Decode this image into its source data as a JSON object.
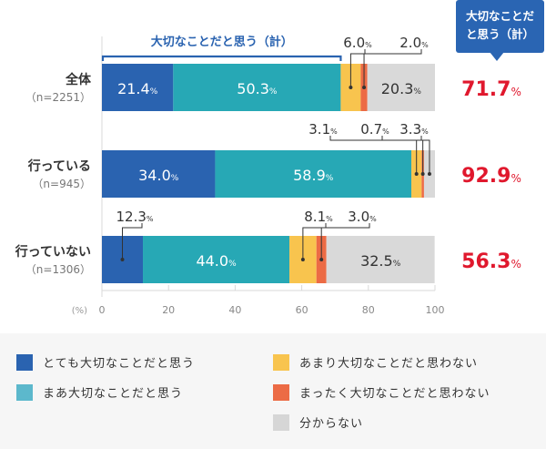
{
  "chart_data": {
    "type": "bar",
    "orientation": "horizontal-stacked-100",
    "unit_label": "(%)",
    "xlim": [
      0,
      100
    ],
    "x_ticks": [
      0,
      20,
      40,
      60,
      80,
      100
    ],
    "bracket_label": "大切なことだと思う（計）",
    "callout_label_line1": "大切なことだ",
    "callout_label_line2": "と思う（計）",
    "categories": [
      {
        "label": "全体",
        "n": "（n=2251）",
        "total": "71.7"
      },
      {
        "label": "行っている",
        "n": "（n=945）",
        "total": "92.9"
      },
      {
        "label": "行っていない",
        "n": "（n=1306）",
        "total": "56.3"
      }
    ],
    "series": [
      {
        "name": "とても大切なことだと思う",
        "color": "#2a63b0",
        "values": [
          21.4,
          34.0,
          12.3
        ]
      },
      {
        "name": "まあ大切なことだと思う",
        "color": "#27a8b5",
        "values": [
          50.3,
          58.9,
          44.0
        ]
      },
      {
        "name": "あまり大切なことだと思わない",
        "color": "#f8c44e",
        "values": [
          6.0,
          3.1,
          8.1
        ]
      },
      {
        "name": "まったく大切なことだと思わない",
        "color": "#ec6b45",
        "values": [
          2.0,
          0.7,
          3.0
        ]
      },
      {
        "name": "分からない",
        "color": "#d9d9d9",
        "values": [
          20.3,
          3.3,
          32.5
        ]
      }
    ],
    "legend_placement": "bottom",
    "total_color": "#e0182d"
  }
}
